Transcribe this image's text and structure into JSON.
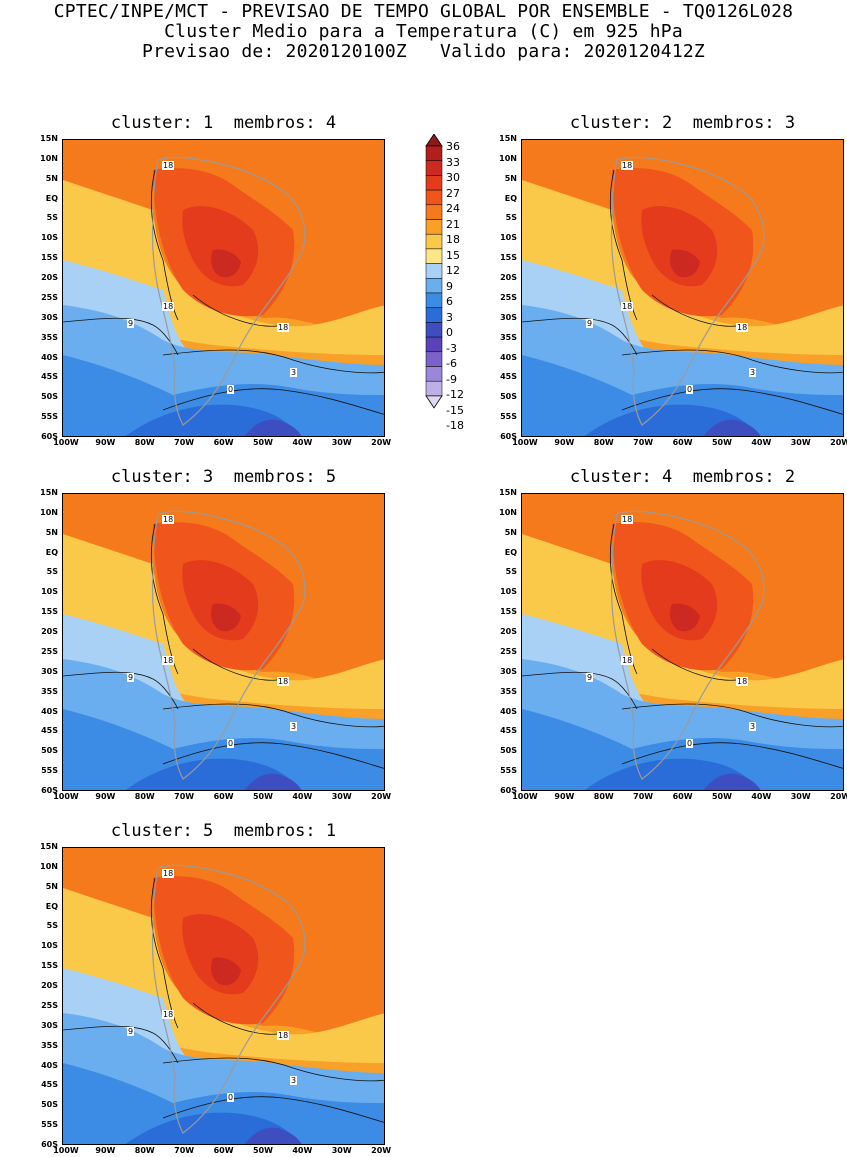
{
  "header": {
    "line1": "CPTEC/INPE/MCT - PREVISAO DE TEMPO GLOBAL POR ENSEMBLE - TQ0126L028",
    "line2": "Cluster Medio para a Temperatura (C) em 925 hPa",
    "line3": "Previsao de: 2020120100Z   Valido para: 2020120412Z"
  },
  "panels": [
    {
      "title": "cluster: 1  membros: 4"
    },
    {
      "title": "cluster: 2  membros: 3"
    },
    {
      "title": "cluster: 3  membros: 5"
    },
    {
      "title": "cluster: 4  membros: 2"
    },
    {
      "title": "cluster: 5  membros: 1"
    }
  ],
  "axes": {
    "lat_labels": [
      "15N",
      "10N",
      "5N",
      "EQ",
      "5S",
      "10S",
      "15S",
      "20S",
      "25S",
      "30S",
      "35S",
      "40S",
      "45S",
      "50S",
      "55S",
      "60S"
    ],
    "lon_labels": [
      "100W",
      "90W",
      "80W",
      "70W",
      "60W",
      "50W",
      "40W",
      "30W",
      "20W"
    ]
  },
  "contour_labels": {
    "c18": "18",
    "c9": "9",
    "c3": "3",
    "c0": "0"
  },
  "colorbar": {
    "levels": [
      "36",
      "33",
      "30",
      "27",
      "24",
      "21",
      "18",
      "15",
      "12",
      "9",
      "6",
      "3",
      "0",
      "-3",
      "-6",
      "-9",
      "-12",
      "-15",
      "-18"
    ],
    "colors": [
      "#8b1a1a",
      "#b01e1e",
      "#cc2a20",
      "#e33b1c",
      "#f0561c",
      "#f57a1c",
      "#f8a028",
      "#fbc94a",
      "#fde58a",
      "#a9d0f5",
      "#6aaef0",
      "#3c8ce6",
      "#2a6cd8",
      "#3d4fc0",
      "#5a43b8",
      "#7b62c9",
      "#9a87d8",
      "#bdb0e6",
      "#ded8f3"
    ]
  }
}
